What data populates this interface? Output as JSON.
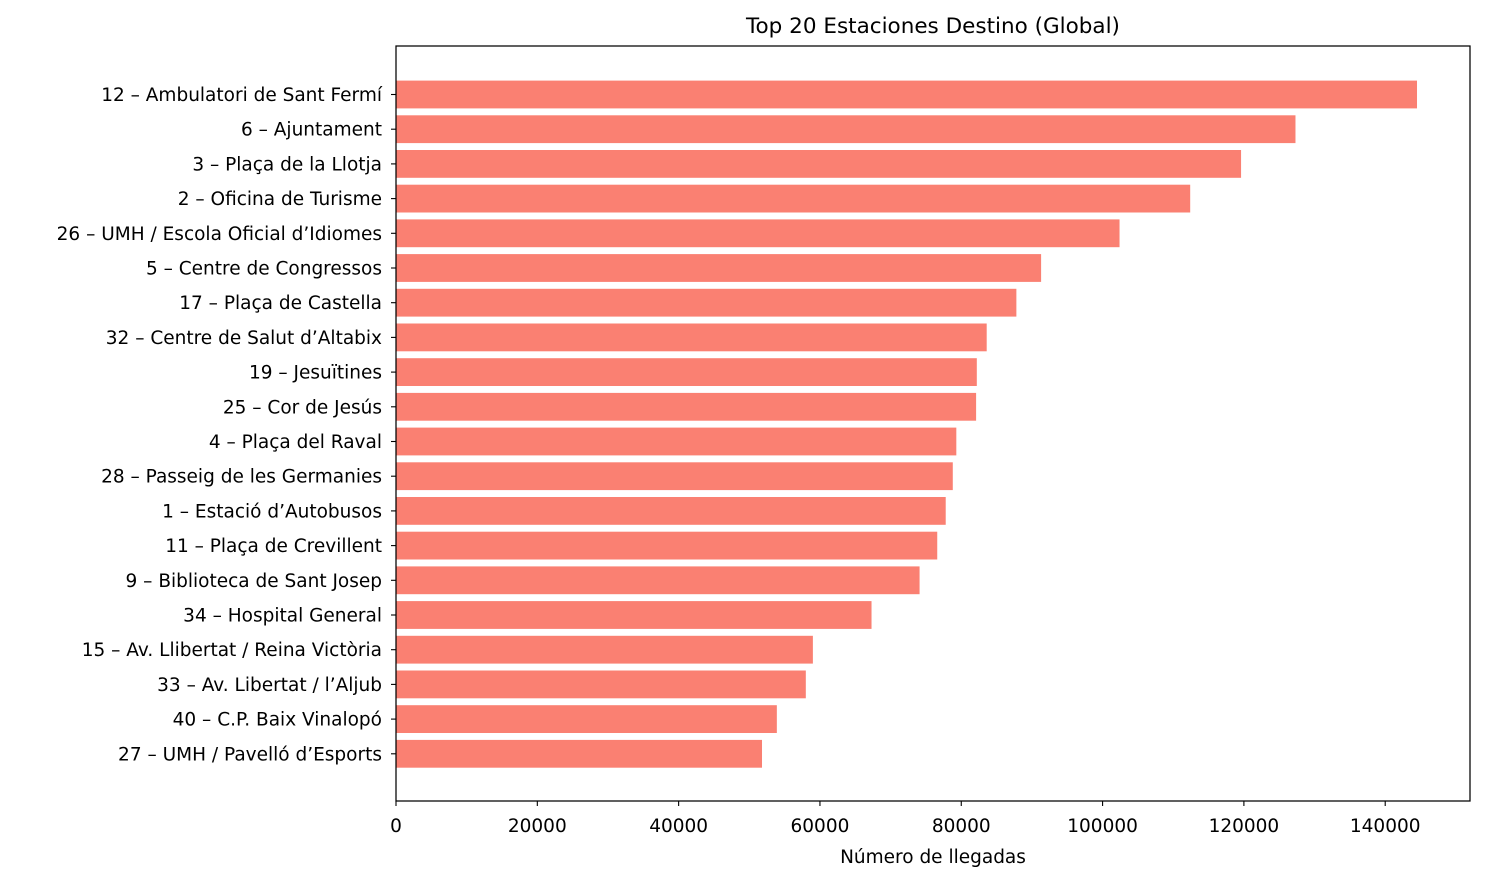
{
  "chart_data": {
    "type": "bar",
    "orientation": "horizontal",
    "title": "Top 20 Estaciones Destino (Global)",
    "xlabel": "Número de llegadas",
    "ylabel": "",
    "xlim": [
      0,
      152000
    ],
    "xticks": [
      0,
      20000,
      40000,
      60000,
      80000,
      100000,
      120000,
      140000
    ],
    "grid": false,
    "bar_color": "#FA8072",
    "categories": [
      "12 – Ambulatori de Sant Fermí",
      "6 – Ajuntament",
      "3 – Plaça de la Llotja",
      "2 – Oficina de Turisme",
      "26 – UMH / Escola Oficial d’Idiomes",
      "5 – Centre de Congressos",
      "17 – Plaça de Castella",
      "32 – Centre de Salut d’Altabix",
      "19 – Jesuïtines",
      "25 – Cor de Jesús",
      "4 – Plaça del Raval",
      "28 – Passeig de les Germanies",
      "1 – Estació d’Autobusos",
      "11 – Plaça de Crevillent",
      "9 – Biblioteca de Sant Josep",
      "34 – Hospital General",
      "15 – Av. Llibertat / Reina Victòria",
      "33 – Av. Libertat / l’Aljub",
      "40 – C.P. Baix Vinalopó",
      "27 – UMH / Pavelló d’Esports"
    ],
    "values": [
      144500,
      127300,
      119600,
      112400,
      102400,
      91300,
      87800,
      83600,
      82200,
      82100,
      79300,
      78800,
      77800,
      76600,
      74100,
      67300,
      59000,
      58000,
      53900,
      51800
    ]
  }
}
